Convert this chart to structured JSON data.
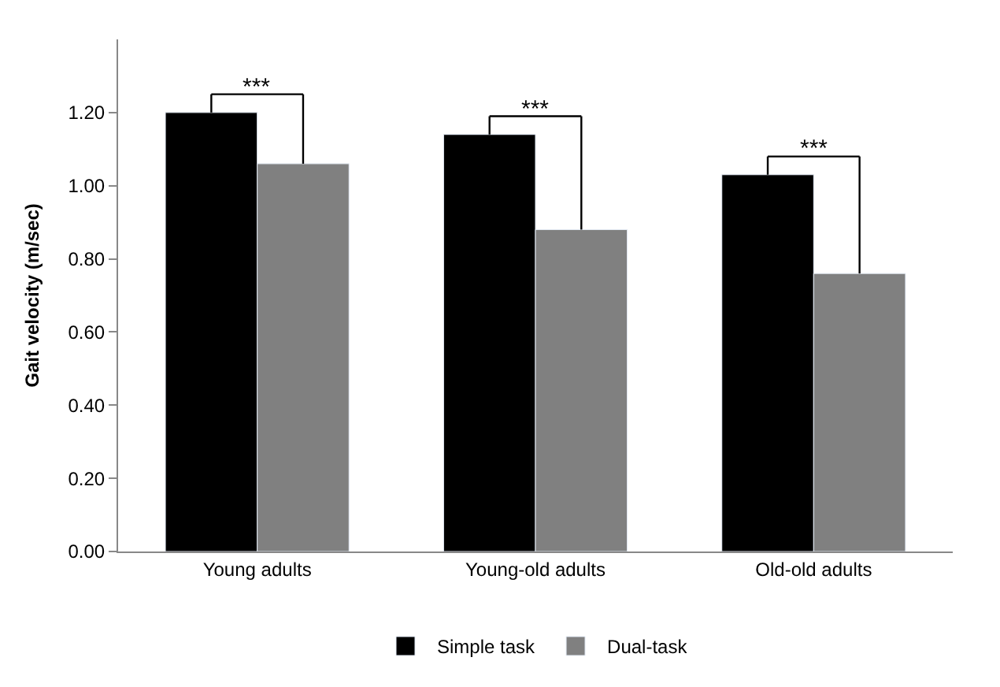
{
  "chart_data": {
    "type": "bar",
    "ylabel": "Gait velocity (m/sec)",
    "categories": [
      "Young adults",
      "Young-old adults",
      "Old-old adults"
    ],
    "series": [
      {
        "name": "Simple task",
        "color": "#000000",
        "values": [
          1.2,
          1.14,
          1.03
        ]
      },
      {
        "name": "Dual-task",
        "color": "#808080",
        "values": [
          1.06,
          0.88,
          0.76
        ]
      }
    ],
    "ylim": [
      0,
      1.4
    ],
    "yticks": [
      {
        "value": 0,
        "label": "0.00"
      },
      {
        "value": 0.2,
        "label": "0.20"
      },
      {
        "value": 0.4,
        "label": "0.40"
      },
      {
        "value": 0.6,
        "label": "0.60"
      },
      {
        "value": 0.8,
        "label": "0.80"
      },
      {
        "value": 1.0,
        "label": "1.00"
      },
      {
        "value": 1.2,
        "label": "1.20"
      }
    ],
    "annotations": [
      "***",
      "***",
      "***"
    ],
    "legend": "bottom"
  }
}
